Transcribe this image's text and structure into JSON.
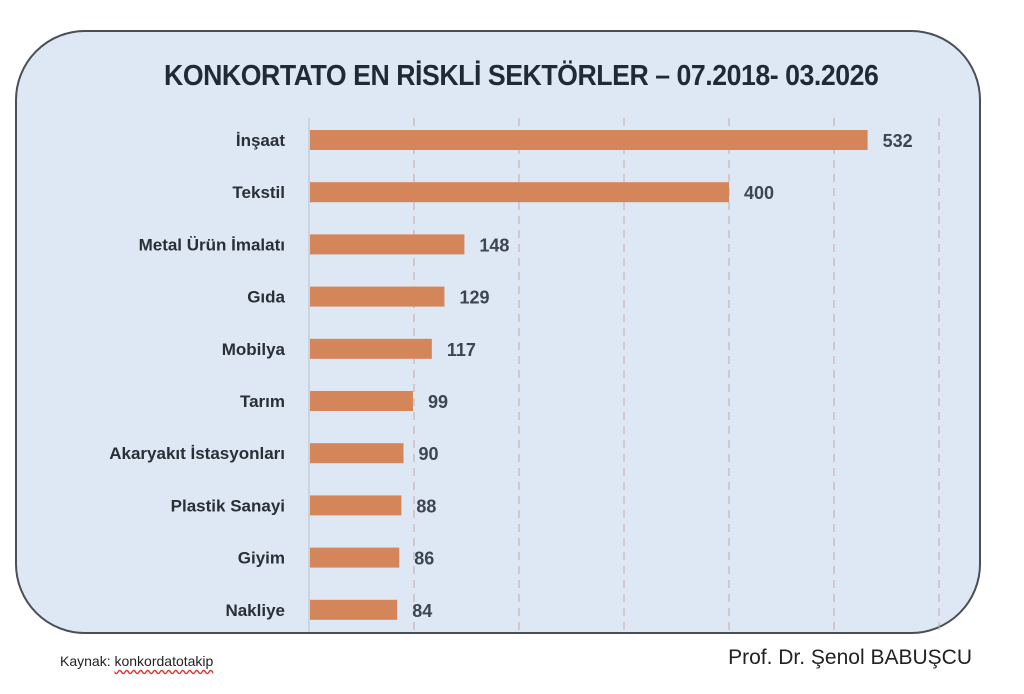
{
  "chart_data": {
    "type": "bar",
    "orientation": "horizontal",
    "title": "KONKORTATO EN RİSKLİ SEKTÖRLER – 07.2018- 03.2026",
    "categories": [
      "İnşaat",
      "Tekstil",
      "Metal Ürün İmalatı",
      "Gıda",
      "Mobilya",
      "Tarım",
      "Akaryakıt İstasyonları",
      "Plastik Sanayi",
      "Giyim",
      "Nakliye"
    ],
    "values": [
      532,
      400,
      148,
      129,
      117,
      99,
      90,
      88,
      86,
      84
    ],
    "xlim": [
      0,
      600
    ],
    "grid_step": 100,
    "grid": true,
    "bar_color": "#d5855a"
  },
  "footer": {
    "source_label": "Kaynak:",
    "source_name": "konkordatotakip",
    "author": "Prof. Dr. Şenol BABUŞCU"
  }
}
